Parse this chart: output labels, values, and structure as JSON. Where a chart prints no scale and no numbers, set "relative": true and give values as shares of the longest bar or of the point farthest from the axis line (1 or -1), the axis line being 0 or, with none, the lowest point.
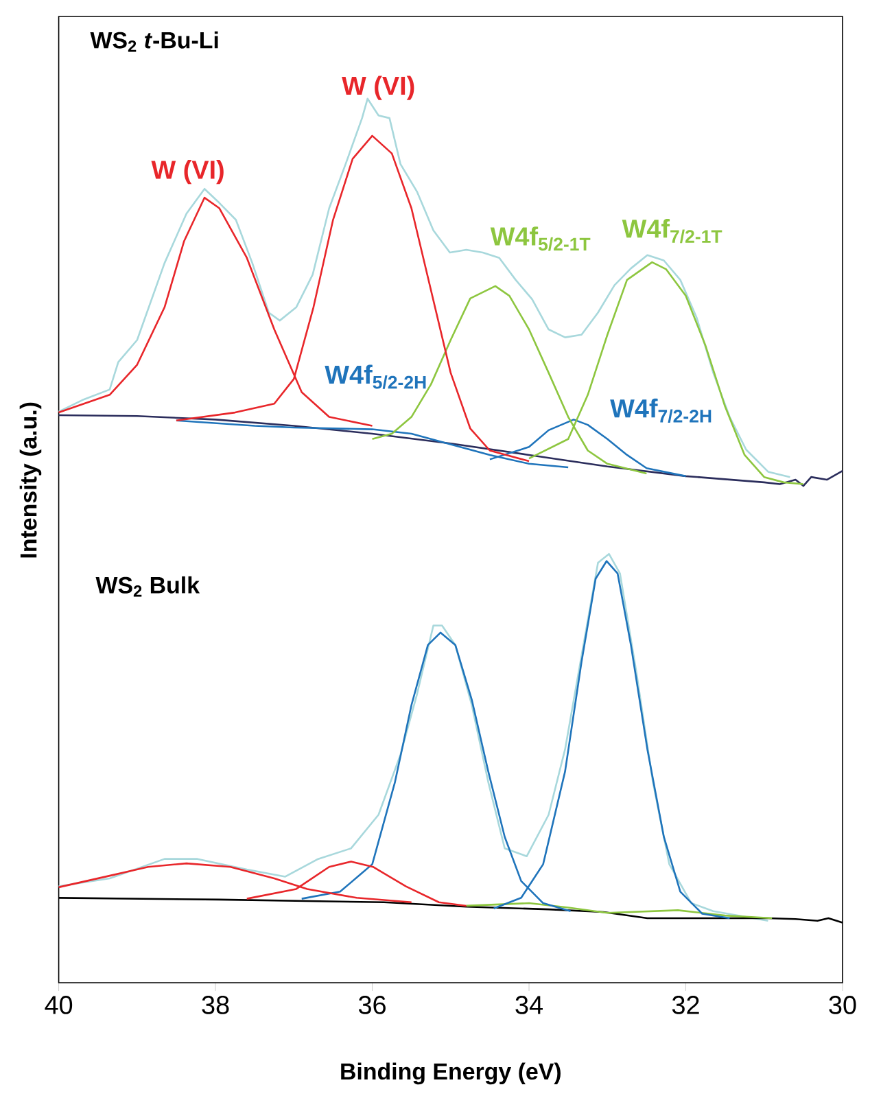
{
  "chart_data": {
    "type": "line",
    "relative": true,
    "marker": "none",
    "xlabel": "Binding Energy (eV)",
    "ylabel": "Intensity (a.u.)",
    "xlim": [
      40,
      30
    ],
    "xticks": [
      40,
      38,
      36,
      34,
      32,
      30
    ],
    "series": [
      {
        "color": "#e8262a",
        "x": [
          40,
          39.35,
          39,
          38.65,
          38.4,
          38.14,
          37.95,
          37.6,
          37.25,
          36.9,
          36.55,
          36
        ],
        "values": [
          0.645,
          0.665,
          0.699,
          0.764,
          0.839,
          0.888,
          0.876,
          0.82,
          0.739,
          0.668,
          0.64,
          0.63
        ]
      },
      {
        "color": "#e8262a",
        "x": [
          38.5,
          37.75,
          37.25,
          37,
          36.75,
          36.5,
          36.25,
          36,
          35.75,
          35.5,
          35.25,
          35,
          34.75,
          34.5,
          34
        ],
        "values": [
          0.636,
          0.645,
          0.655,
          0.683,
          0.764,
          0.863,
          0.932,
          0.958,
          0.938,
          0.876,
          0.783,
          0.69,
          0.627,
          0.602,
          0.59
        ]
      },
      {
        "color": "#8dc63f",
        "x": [
          36,
          35.75,
          35.5,
          35.25,
          35,
          34.75,
          34.43,
          34.25,
          34,
          33.75,
          33.5,
          33.25,
          33,
          32.5
        ],
        "values": [
          0.615,
          0.621,
          0.64,
          0.677,
          0.727,
          0.774,
          0.788,
          0.777,
          0.739,
          0.69,
          0.64,
          0.602,
          0.587,
          0.576
        ]
      },
      {
        "color": "#8dc63f",
        "x": [
          34,
          33.5,
          33.25,
          33,
          32.75,
          32.43,
          32.25,
          32,
          31.75,
          31.5,
          31.25,
          31,
          30.75,
          30.5
        ],
        "values": [
          0.593,
          0.615,
          0.665,
          0.733,
          0.795,
          0.815,
          0.807,
          0.777,
          0.721,
          0.652,
          0.597,
          0.572,
          0.566,
          0.564
        ]
      },
      {
        "color": "#1f74bb",
        "x": [
          38.5,
          37.5,
          37,
          36.5,
          36,
          35.5,
          35,
          34.5,
          34,
          33.5
        ],
        "values": [
          0.636,
          0.63,
          0.628,
          0.627,
          0.626,
          0.621,
          0.609,
          0.597,
          0.587,
          0.583
        ]
      },
      {
        "color": "#1f74bb",
        "x": [
          34.5,
          34,
          33.75,
          33.43,
          33.25,
          33,
          32.75,
          32.5,
          32
        ],
        "values": [
          0.592,
          0.606,
          0.625,
          0.637,
          0.631,
          0.615,
          0.597,
          0.582,
          0.573
        ]
      },
      {
        "color": "#e8262a",
        "x": [
          40,
          39.35,
          38.86,
          38.37,
          37.81,
          37.25,
          36.83,
          36.2,
          35.5
        ],
        "values": [
          0.108,
          0.121,
          0.131,
          0.135,
          0.131,
          0.118,
          0.106,
          0.096,
          0.091
        ]
      },
      {
        "color": "#e8262a",
        "x": [
          37.6,
          36.97,
          36.55,
          36.27,
          35.99,
          35.57,
          35.15,
          34.8
        ],
        "values": [
          0.095,
          0.106,
          0.131,
          0.137,
          0.131,
          0.109,
          0.091,
          0.087
        ]
      },
      {
        "color": "#1f74bb",
        "x": [
          36.9,
          36.41,
          36,
          35.71,
          35.5,
          35.29,
          35.13,
          34.94,
          34.73,
          34.52,
          34.31,
          34.1,
          33.82,
          33.47
        ],
        "values": [
          0.095,
          0.103,
          0.134,
          0.227,
          0.314,
          0.382,
          0.396,
          0.382,
          0.32,
          0.239,
          0.165,
          0.115,
          0.09,
          0.081
        ]
      },
      {
        "color": "#1f74bb",
        "x": [
          34.45,
          34.1,
          33.82,
          33.54,
          33.33,
          33.15,
          33.01,
          32.87,
          32.7,
          32.49,
          32.28,
          32.07,
          31.79,
          31.44
        ],
        "values": [
          0.084,
          0.096,
          0.134,
          0.239,
          0.363,
          0.457,
          0.477,
          0.463,
          0.382,
          0.264,
          0.165,
          0.103,
          0.078,
          0.073
        ]
      },
      {
        "color": "#8dc63f",
        "x": [
          34.8,
          34,
          33.5,
          33,
          32.1,
          31.5,
          30.9
        ],
        "values": [
          0.087,
          0.09,
          0.085,
          0.079,
          0.082,
          0.076,
          0.073
        ]
      },
      {
        "color": "#2b2d5c",
        "x": [
          40,
          39,
          38,
          37,
          36,
          35,
          34,
          33,
          32,
          31,
          30.8,
          30.6,
          30.5,
          30.4,
          30.2,
          30
        ],
        "values": [
          0.642,
          0.641,
          0.637,
          0.63,
          0.621,
          0.61,
          0.597,
          0.584,
          0.573,
          0.566,
          0.564,
          0.569,
          0.562,
          0.572,
          0.569,
          0.579
        ]
      },
      {
        "color": "#000000",
        "x": [
          40,
          37.95,
          35.85,
          34.8,
          33.75,
          33.05,
          32.49,
          30.95,
          30.6,
          30.32,
          30.18,
          30
        ],
        "values": [
          0.096,
          0.094,
          0.091,
          0.086,
          0.083,
          0.08,
          0.073,
          0.073,
          0.072,
          0.07,
          0.073,
          0.068
        ]
      },
      {
        "color": "#a8d8dc",
        "x": [
          40,
          39.7,
          39.35,
          39.24,
          39,
          38.65,
          38.37,
          38.14,
          37.95,
          37.74,
          37.53,
          37.32,
          37.18,
          36.97,
          36.76,
          36.55,
          36.34,
          36.13,
          36.06,
          35.92,
          35.78,
          35.64,
          35.43,
          35.22,
          35.01,
          34.8,
          34.59,
          34.38,
          34.17,
          33.96,
          33.75,
          33.54,
          33.33,
          33.12,
          32.91,
          32.7,
          32.49,
          32.28,
          32.07,
          31.86,
          31.65,
          31.44,
          31.23,
          30.95,
          30.67
        ],
        "values": [
          0.646,
          0.659,
          0.671,
          0.702,
          0.727,
          0.814,
          0.87,
          0.898,
          0.882,
          0.863,
          0.814,
          0.758,
          0.749,
          0.764,
          0.801,
          0.876,
          0.926,
          0.978,
          1.0,
          0.981,
          0.978,
          0.926,
          0.895,
          0.851,
          0.826,
          0.829,
          0.826,
          0.82,
          0.795,
          0.773,
          0.739,
          0.73,
          0.733,
          0.758,
          0.789,
          0.808,
          0.823,
          0.817,
          0.795,
          0.752,
          0.69,
          0.64,
          0.603,
          0.578,
          0.572
        ]
      },
      {
        "color": "#a8d8dc",
        "x": [
          40,
          39.35,
          38.65,
          38.23,
          37.6,
          37.11,
          36.69,
          36.27,
          35.92,
          35.64,
          35.43,
          35.22,
          35.11,
          34.94,
          34.73,
          34.52,
          34.31,
          34.03,
          33.75,
          33.54,
          33.33,
          33.12,
          32.98,
          32.84,
          32.63,
          32.42,
          32.21,
          31.93,
          31.65,
          30.95
        ],
        "values": [
          0.109,
          0.118,
          0.14,
          0.14,
          0.128,
          0.12,
          0.14,
          0.152,
          0.19,
          0.258,
          0.326,
          0.404,
          0.404,
          0.382,
          0.314,
          0.227,
          0.152,
          0.143,
          0.19,
          0.264,
          0.37,
          0.475,
          0.485,
          0.463,
          0.351,
          0.227,
          0.134,
          0.09,
          0.081,
          0.07
        ]
      }
    ],
    "annotations": [
      "WS$_{2}$  *t*-Bu-Li",
      "WS$_{2}$  Bulk",
      "W (VI)",
      "W (VI)",
      "W4f$_{5/2-1T}$",
      "W4f$_{7/2-1T}$",
      "W4f$_{5/2-2H}$",
      "W4f$_{7/2-2H}$"
    ]
  }
}
